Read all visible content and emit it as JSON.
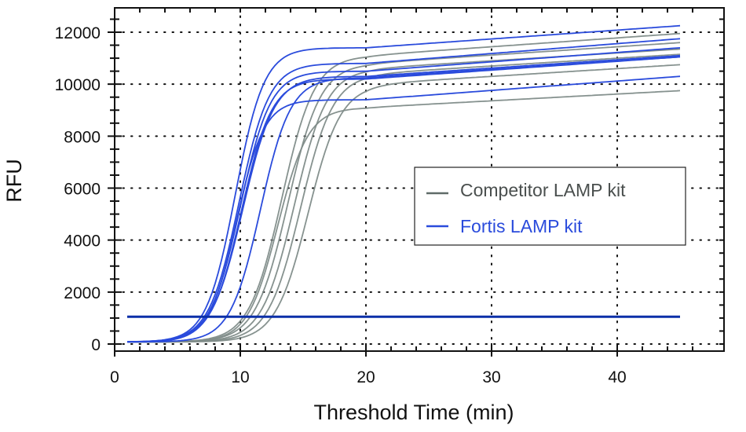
{
  "chart_data": {
    "type": "line",
    "title": "",
    "xlabel": "Threshold Time (min)",
    "ylabel": "RFU",
    "xlim": [
      0,
      47
    ],
    "ylim": [
      -200,
      12800
    ],
    "x_ticks": [
      0,
      10,
      20,
      30,
      40
    ],
    "y_ticks": [
      0,
      2000,
      4000,
      6000,
      8000,
      10000,
      12000
    ],
    "grid": "dotted",
    "legend_position": "center-right",
    "legend": [
      {
        "label": "Competitor LAMP kit",
        "color": "#5f6b68"
      },
      {
        "label": "Fortis LAMP kit",
        "color": "#2a4bdc"
      }
    ],
    "threshold": {
      "y": 1050,
      "color": "#0b2fa8",
      "x_range": [
        1,
        45
      ]
    },
    "curve_model": "sigmoid: y = base + (plateau - base) / (1 + exp(-(x - midpoint) / scale)) + drift*(x-20)",
    "series": [
      {
        "name": "Fortis LAMP kit",
        "color": "#2a4bdc",
        "curves": [
          {
            "midpoint": 9.6,
            "plateau": 11400,
            "scale": 1.15,
            "drift": 30,
            "end_value": 12250
          },
          {
            "midpoint": 9.9,
            "plateau": 10800,
            "scale": 1.2,
            "drift": 28,
            "end_value": 11750
          },
          {
            "midpoint": 10.0,
            "plateau": 10500,
            "scale": 1.2,
            "drift": 26,
            "end_value": 11400
          },
          {
            "midpoint": 10.2,
            "plateau": 10300,
            "scale": 1.25,
            "drift": 24,
            "end_value": 11100
          },
          {
            "midpoint": 10.1,
            "plateau": 10200,
            "scale": 1.2,
            "drift": 25,
            "end_value": 11050
          },
          {
            "midpoint": 9.7,
            "plateau": 9400,
            "scale": 1.1,
            "drift": 25,
            "end_value": 10300
          },
          {
            "midpoint": 11.6,
            "plateau": 10250,
            "scale": 1.2,
            "drift": 22,
            "end_value": 11050
          }
        ]
      },
      {
        "name": "Competitor LAMP kit",
        "color": "#7f8c89",
        "curves": [
          {
            "midpoint": 13.3,
            "plateau": 11100,
            "scale": 1.3,
            "drift": 25,
            "end_value": 11950
          },
          {
            "midpoint": 13.8,
            "plateau": 10800,
            "scale": 1.3,
            "drift": 24,
            "end_value": 11600
          },
          {
            "midpoint": 14.3,
            "plateau": 10600,
            "scale": 1.3,
            "drift": 23,
            "end_value": 11350
          },
          {
            "midpoint": 14.8,
            "plateau": 10400,
            "scale": 1.3,
            "drift": 22,
            "end_value": 11150
          },
          {
            "midpoint": 15.4,
            "plateau": 10000,
            "scale": 1.3,
            "drift": 21,
            "end_value": 10750
          },
          {
            "midpoint": 13.0,
            "plateau": 9100,
            "scale": 1.2,
            "drift": 20,
            "end_value": 9750
          }
        ]
      }
    ]
  },
  "axes": {
    "x_title": "Threshold Time (min)",
    "y_title": "RFU",
    "x_tick_labels": [
      "0",
      "10",
      "20",
      "30",
      "40"
    ],
    "y_tick_labels": [
      "0",
      "2000",
      "4000",
      "6000",
      "8000",
      "10000",
      "12000"
    ]
  },
  "legend": {
    "items": [
      {
        "label": "Competitor LAMP kit",
        "color": "#5f6b68"
      },
      {
        "label": "Fortis LAMP kit",
        "color": "#2a4bdc"
      }
    ]
  }
}
